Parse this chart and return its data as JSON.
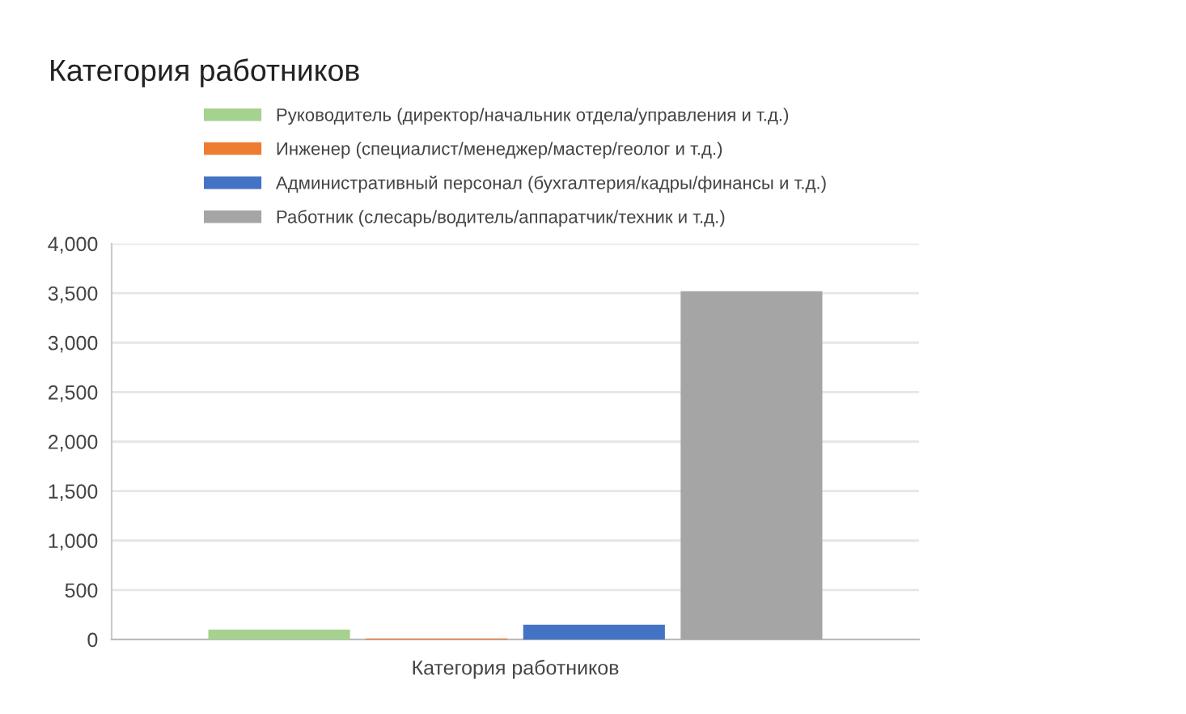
{
  "chart_data": {
    "type": "bar",
    "title": "Категория работников",
    "xlabel": "Категория работников",
    "categories": [
      null
    ],
    "series": [
      {
        "name": "Руководитель (директор/начальник отдела/управления и т.д.)",
        "color": "#a5d28e",
        "values": [
          100
        ]
      },
      {
        "name": "Инженер (специалист/менеджер/мастер/геолог и т.д.)",
        "color": "#ed7d31",
        "values": [
          10
        ]
      },
      {
        "name": "Административный персонал (бухгалтерия/кадры/финансы и т.д.)",
        "color": "#4472c4",
        "values": [
          150
        ]
      },
      {
        "name": "Работник (слесарь/водитель/аппаратчик/техник и т.д.)",
        "color": "#a5a5a5",
        "values": [
          3520
        ]
      }
    ],
    "ylim": [
      0,
      4000
    ],
    "yticks": [
      0,
      500,
      {
        "value": 1000,
        "label": "1,000"
      },
      {
        "value": 1500,
        "label": "1,500"
      },
      {
        "value": 2000,
        "label": "2,000"
      },
      {
        "value": 2500,
        "label": "2,500"
      },
      {
        "value": 3000,
        "label": "3,000"
      },
      {
        "value": 3500,
        "label": "3,500"
      },
      {
        "value": 4000,
        "label": "4,000"
      }
    ],
    "grid": "y",
    "legend": "top"
  }
}
